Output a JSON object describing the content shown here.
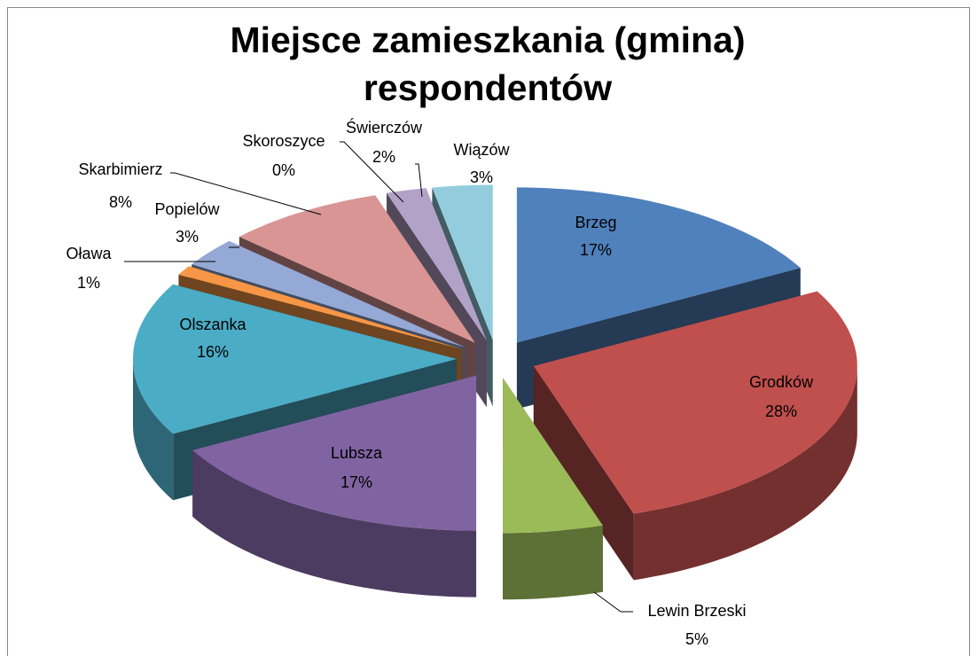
{
  "chart_data": {
    "type": "pie3d",
    "title": "Miejsce zamieszkania (gmina) respondentów",
    "categories": [
      "Brzeg",
      "Grodków",
      "Lewin Brzeski",
      "Lubsza",
      "Olszanka",
      "Oława",
      "Popielów",
      "Skarbimierz",
      "Skoroszyce",
      "Świerczów",
      "Wiązów"
    ],
    "values": [
      17,
      28,
      5,
      17,
      16,
      1,
      3,
      8,
      0,
      2,
      3
    ],
    "value_labels": [
      "17%",
      "28%",
      "5%",
      "17%",
      "16%",
      "1%",
      "3%",
      "8%",
      "0%",
      "2%",
      "3%"
    ],
    "colors": [
      "#4f81bd",
      "#c0504d",
      "#9bbb59",
      "#8064a2",
      "#4bacc6",
      "#f79646",
      "#95a9d6",
      "#d99594",
      "#c3d69b",
      "#b3a2c7",
      "#93cddd"
    ]
  }
}
